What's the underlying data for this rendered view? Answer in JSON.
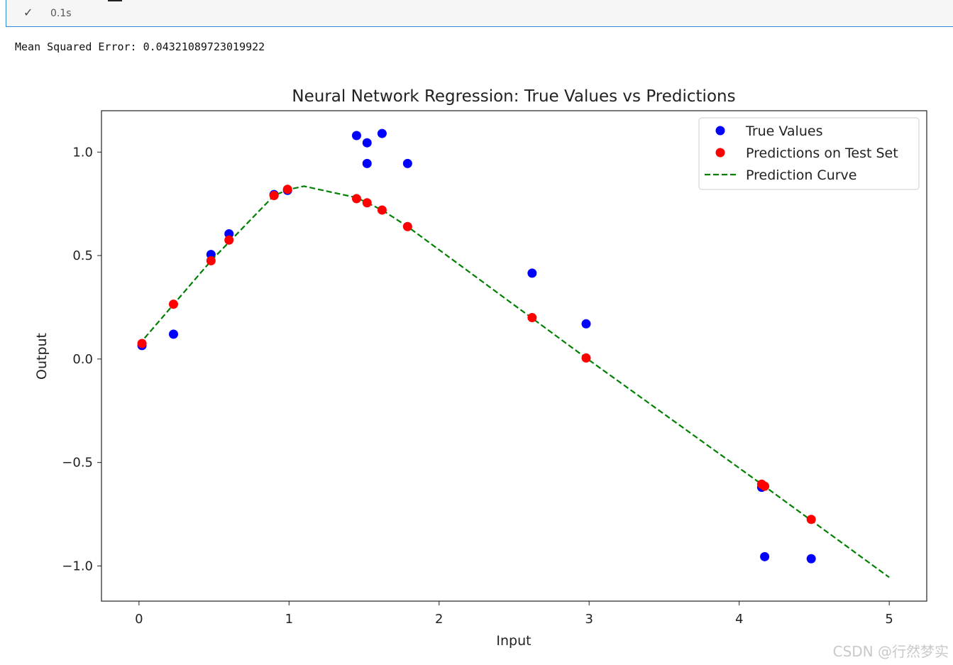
{
  "cell": {
    "status_icon": "check-icon",
    "exec_time": "0.1s"
  },
  "output": {
    "mse_line": "Mean Squared Error: 0.04321089723019922"
  },
  "chart_data": {
    "type": "scatter",
    "title": "Neural Network Regression: True Values vs Predictions",
    "xlabel": "Input",
    "ylabel": "Output",
    "xlim": [
      -0.25,
      5.25
    ],
    "ylim": [
      -1.17,
      1.2
    ],
    "xticks": [
      0,
      1,
      2,
      3,
      4,
      5
    ],
    "xtick_labels": [
      "0",
      "1",
      "2",
      "3",
      "4",
      "5"
    ],
    "yticks": [
      1.0,
      0.5,
      0.0,
      -0.5,
      -1.0
    ],
    "ytick_labels": [
      "1.0",
      "0.5",
      "0.0",
      "−0.5",
      "−1.0"
    ],
    "legend_position": "top-right",
    "series": [
      {
        "name": "True Values",
        "kind": "scatter",
        "color": "#0000ff",
        "points": [
          [
            0.02,
            0.065
          ],
          [
            0.23,
            0.12
          ],
          [
            0.48,
            0.505
          ],
          [
            0.6,
            0.605
          ],
          [
            0.9,
            0.795
          ],
          [
            0.99,
            0.815
          ],
          [
            1.45,
            1.08
          ],
          [
            1.52,
            1.045
          ],
          [
            1.52,
            0.945
          ],
          [
            1.62,
            1.09
          ],
          [
            1.79,
            0.945
          ],
          [
            2.62,
            0.415
          ],
          [
            2.98,
            0.17
          ],
          [
            4.15,
            -0.62
          ],
          [
            4.17,
            -0.955
          ],
          [
            4.48,
            -0.965
          ]
        ]
      },
      {
        "name": "Predictions on Test Set",
        "kind": "scatter",
        "color": "#ff0000",
        "points": [
          [
            0.02,
            0.075
          ],
          [
            0.23,
            0.265
          ],
          [
            0.48,
            0.475
          ],
          [
            0.6,
            0.575
          ],
          [
            0.9,
            0.79
          ],
          [
            0.99,
            0.82
          ],
          [
            1.45,
            0.775
          ],
          [
            1.52,
            0.755
          ],
          [
            1.62,
            0.72
          ],
          [
            1.79,
            0.64
          ],
          [
            2.62,
            0.2
          ],
          [
            2.98,
            0.005
          ],
          [
            4.15,
            -0.605
          ],
          [
            4.17,
            -0.615
          ],
          [
            4.48,
            -0.775
          ]
        ]
      },
      {
        "name": "Prediction Curve",
        "kind": "line",
        "style": "dashed",
        "color": "#008000",
        "points": [
          [
            0.0,
            0.07
          ],
          [
            0.48,
            0.475
          ],
          [
            0.9,
            0.79
          ],
          [
            1.0,
            0.82
          ],
          [
            1.1,
            0.835
          ],
          [
            1.45,
            0.78
          ],
          [
            1.52,
            0.755
          ],
          [
            1.62,
            0.72
          ],
          [
            1.79,
            0.64
          ],
          [
            2.98,
            0.005
          ],
          [
            4.15,
            -0.605
          ],
          [
            5.0,
            -1.055
          ]
        ]
      }
    ]
  },
  "watermark": "CSDN @行然梦实"
}
